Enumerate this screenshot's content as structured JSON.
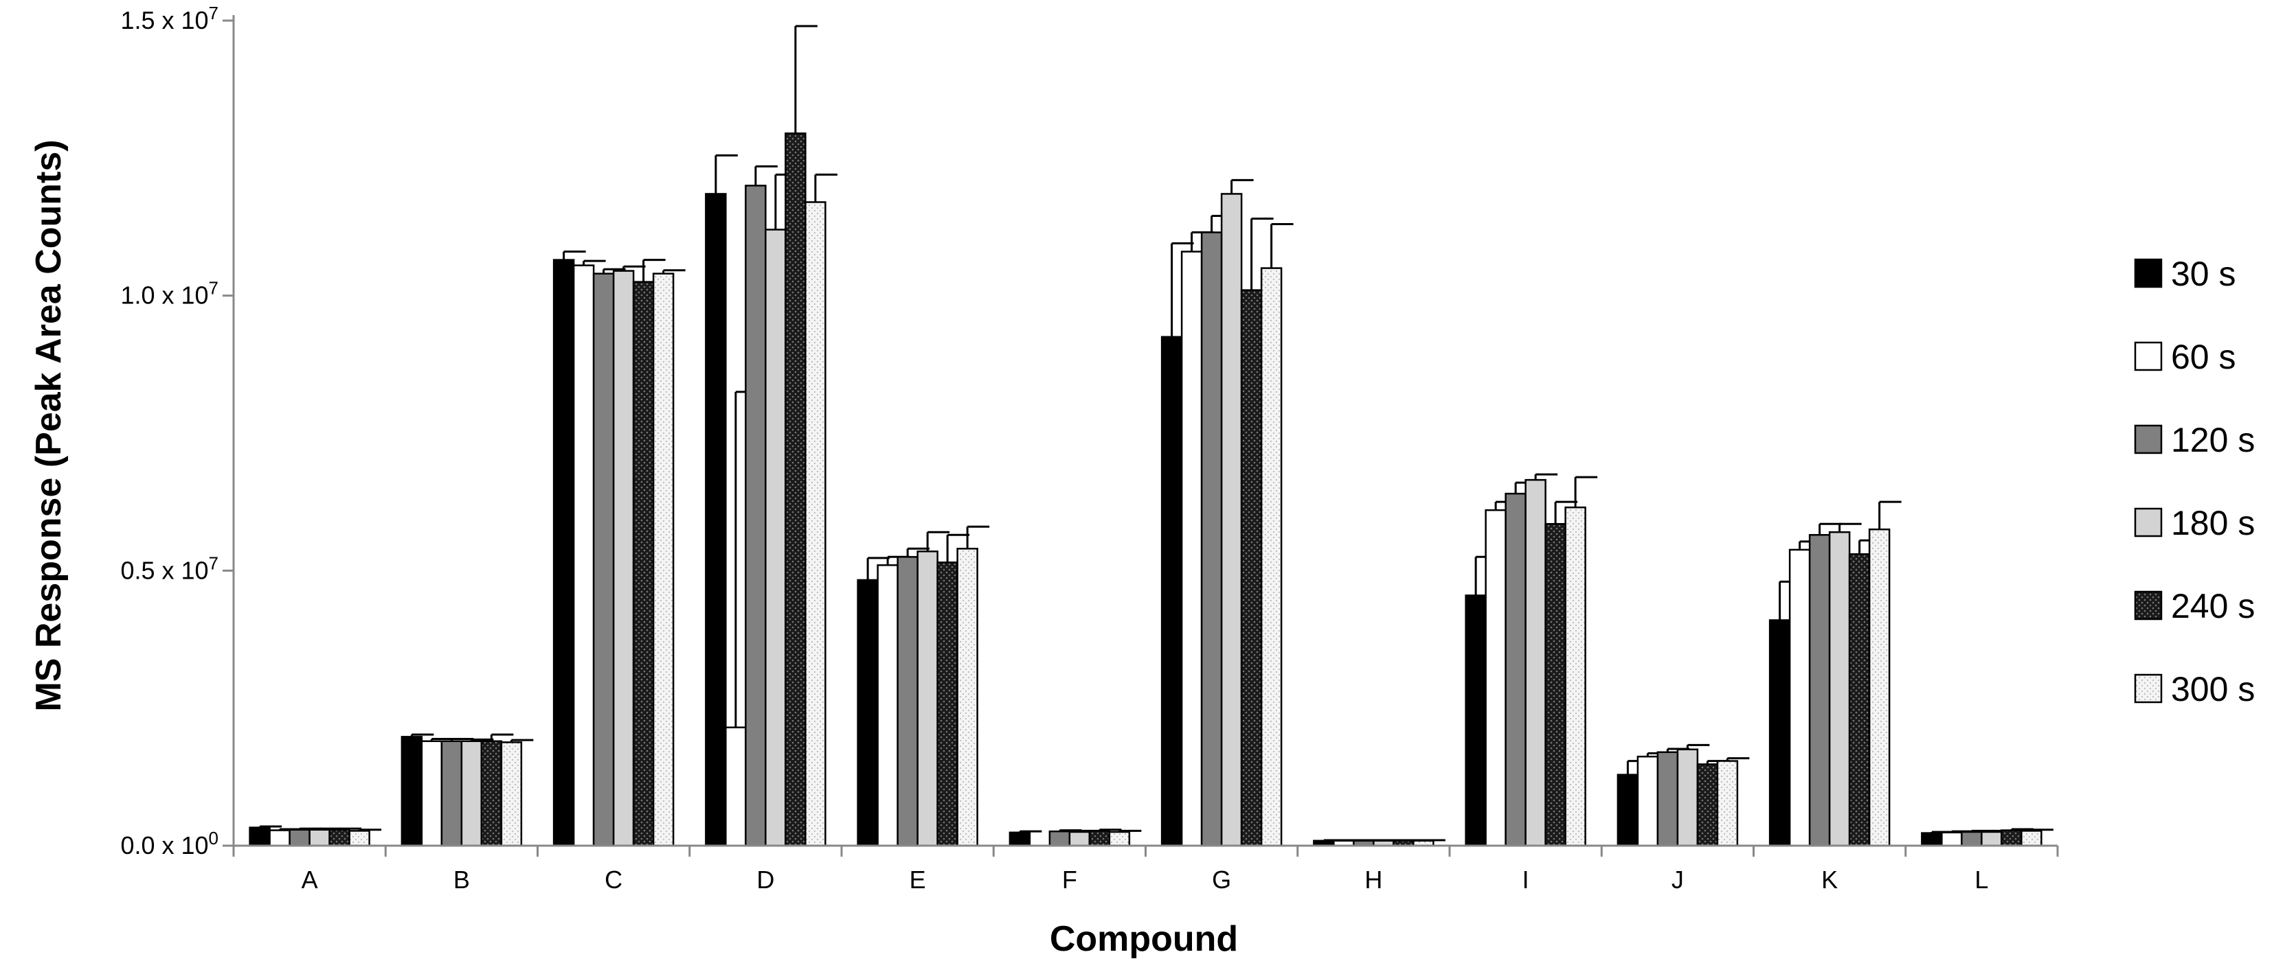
{
  "chart_data": {
    "type": "bar",
    "title": "",
    "xlabel": "Compound",
    "ylabel": "MS Response (Peak Area Counts)",
    "ylim": [
      0,
      15000000
    ],
    "y_ticks": [
      {
        "value": 0,
        "mantissa": "0.0 x 10",
        "exp": "0"
      },
      {
        "value": 5000000,
        "mantissa": "0.5 x 10",
        "exp": "7"
      },
      {
        "value": 10000000,
        "mantissa": "1.0 x 10",
        "exp": "7"
      },
      {
        "value": 15000000,
        "mantissa": "1.5 x 10",
        "exp": "7"
      }
    ],
    "categories": [
      "A",
      "B",
      "C",
      "D",
      "E",
      "F",
      "G",
      "H",
      "I",
      "J",
      "K",
      "L"
    ],
    "legend_position": "right",
    "grid": false,
    "series": [
      {
        "name": "30 s",
        "fill": "#000000",
        "pattern": "solid",
        "values": [
          330000,
          1980000,
          10650000,
          11850000,
          4830000,
          240000,
          9250000,
          90000,
          4550000,
          1290000,
          4100000,
          230000
        ],
        "errors": [
          20000,
          40000,
          150000,
          700000,
          400000,
          20000,
          1700000,
          10000,
          700000,
          250000,
          700000,
          20000
        ]
      },
      {
        "name": "60 s",
        "fill": "#ffffff",
        "pattern": "solid",
        "values": [
          280000,
          1900000,
          10550000,
          2150000,
          5100000,
          0,
          10800000,
          90000,
          6100000,
          1620000,
          5380000,
          240000
        ],
        "errors": [
          20000,
          40000,
          80000,
          6100000,
          150000,
          0,
          350000,
          10000,
          150000,
          60000,
          150000,
          20000
        ]
      },
      {
        "name": "120 s",
        "fill": "#808080",
        "pattern": "solid",
        "values": [
          290000,
          1900000,
          10400000,
          12000000,
          5250000,
          260000,
          11150000,
          90000,
          6400000,
          1700000,
          5650000,
          250000
        ],
        "errors": [
          20000,
          40000,
          80000,
          350000,
          150000,
          20000,
          300000,
          10000,
          200000,
          60000,
          200000,
          20000
        ]
      },
      {
        "name": "180 s",
        "fill": "#d3d3d3",
        "pattern": "solid",
        "values": [
          290000,
          1900000,
          10450000,
          11200000,
          5350000,
          250000,
          11850000,
          90000,
          6650000,
          1750000,
          5700000,
          250000
        ],
        "errors": [
          20000,
          30000,
          80000,
          1000000,
          350000,
          20000,
          250000,
          10000,
          100000,
          80000,
          150000,
          20000
        ]
      },
      {
        "name": "240 s",
        "fill": "#1a1a1a",
        "pattern": "dots",
        "values": [
          290000,
          1900000,
          10250000,
          12950000,
          5150000,
          270000,
          10100000,
          90000,
          5850000,
          1480000,
          5300000,
          280000
        ],
        "errors": [
          20000,
          120000,
          400000,
          1950000,
          500000,
          20000,
          1300000,
          10000,
          400000,
          60000,
          250000,
          20000
        ]
      },
      {
        "name": "300 s",
        "fill": "#f2f2f2",
        "pattern": "speckle",
        "values": [
          270000,
          1880000,
          10400000,
          11700000,
          5400000,
          250000,
          10500000,
          90000,
          6150000,
          1540000,
          5750000,
          270000
        ],
        "errors": [
          20000,
          40000,
          60000,
          500000,
          400000,
          20000,
          800000,
          10000,
          550000,
          50000,
          500000,
          20000
        ]
      }
    ]
  }
}
